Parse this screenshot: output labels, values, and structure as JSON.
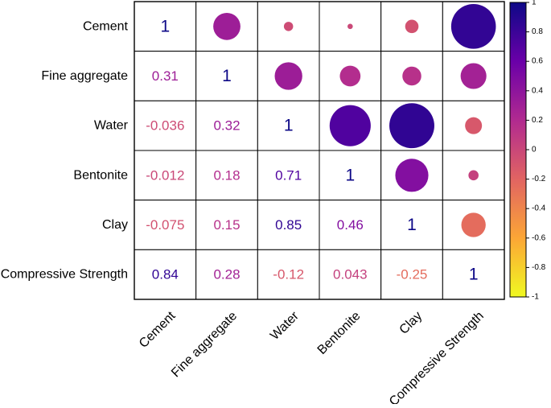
{
  "chart_data": {
    "type": "heatmap",
    "subtype": "correlation-matrix",
    "variables": [
      "Cement",
      "Fine aggregate",
      "Water",
      "Bentonite",
      "Clay",
      "Compressive Strength"
    ],
    "matrix": [
      [
        1,
        0.31,
        -0.036,
        -0.012,
        -0.075,
        0.84
      ],
      [
        0.31,
        1,
        0.32,
        0.18,
        0.15,
        0.28
      ],
      [
        -0.036,
        0.32,
        1,
        0.71,
        0.85,
        -0.12
      ],
      [
        -0.012,
        0.18,
        0.71,
        1,
        0.46,
        0.043
      ],
      [
        -0.075,
        0.15,
        0.85,
        0.46,
        1,
        -0.25
      ],
      [
        0.84,
        0.28,
        -0.12,
        0.043,
        -0.25,
        1
      ]
    ],
    "labels": [
      [
        "1",
        "0.31",
        "-0.036",
        "-0.012",
        "-0.075",
        "0.84"
      ],
      [
        "0.31",
        "1",
        "0.32",
        "0.18",
        "0.15",
        "0.28"
      ],
      [
        "-0.036",
        "0.32",
        "1",
        "0.71",
        "0.85",
        "-0.12"
      ],
      [
        "-0.012",
        "0.18",
        "0.71",
        "1",
        "0.46",
        "0.043"
      ],
      [
        "-0.075",
        "0.15",
        "0.85",
        "0.46",
        "1",
        "-0.25"
      ],
      [
        "0.84",
        "0.28",
        "-0.12",
        "0.043",
        "-0.25",
        "1"
      ]
    ],
    "upper_triangle": "circles",
    "lower_triangle": "numbers",
    "colorbar": {
      "range": [
        -1,
        1
      ],
      "ticks": [
        "1",
        "0.8",
        "0.6",
        "0.4",
        "0.2",
        "0",
        "-0.2",
        "-0.4",
        "-0.6",
        "-0.8",
        "-1"
      ],
      "colors": [
        "#0d0887",
        "#6a00a8",
        "#b12a90",
        "#e16462",
        "#fca636",
        "#f0f921"
      ]
    }
  }
}
